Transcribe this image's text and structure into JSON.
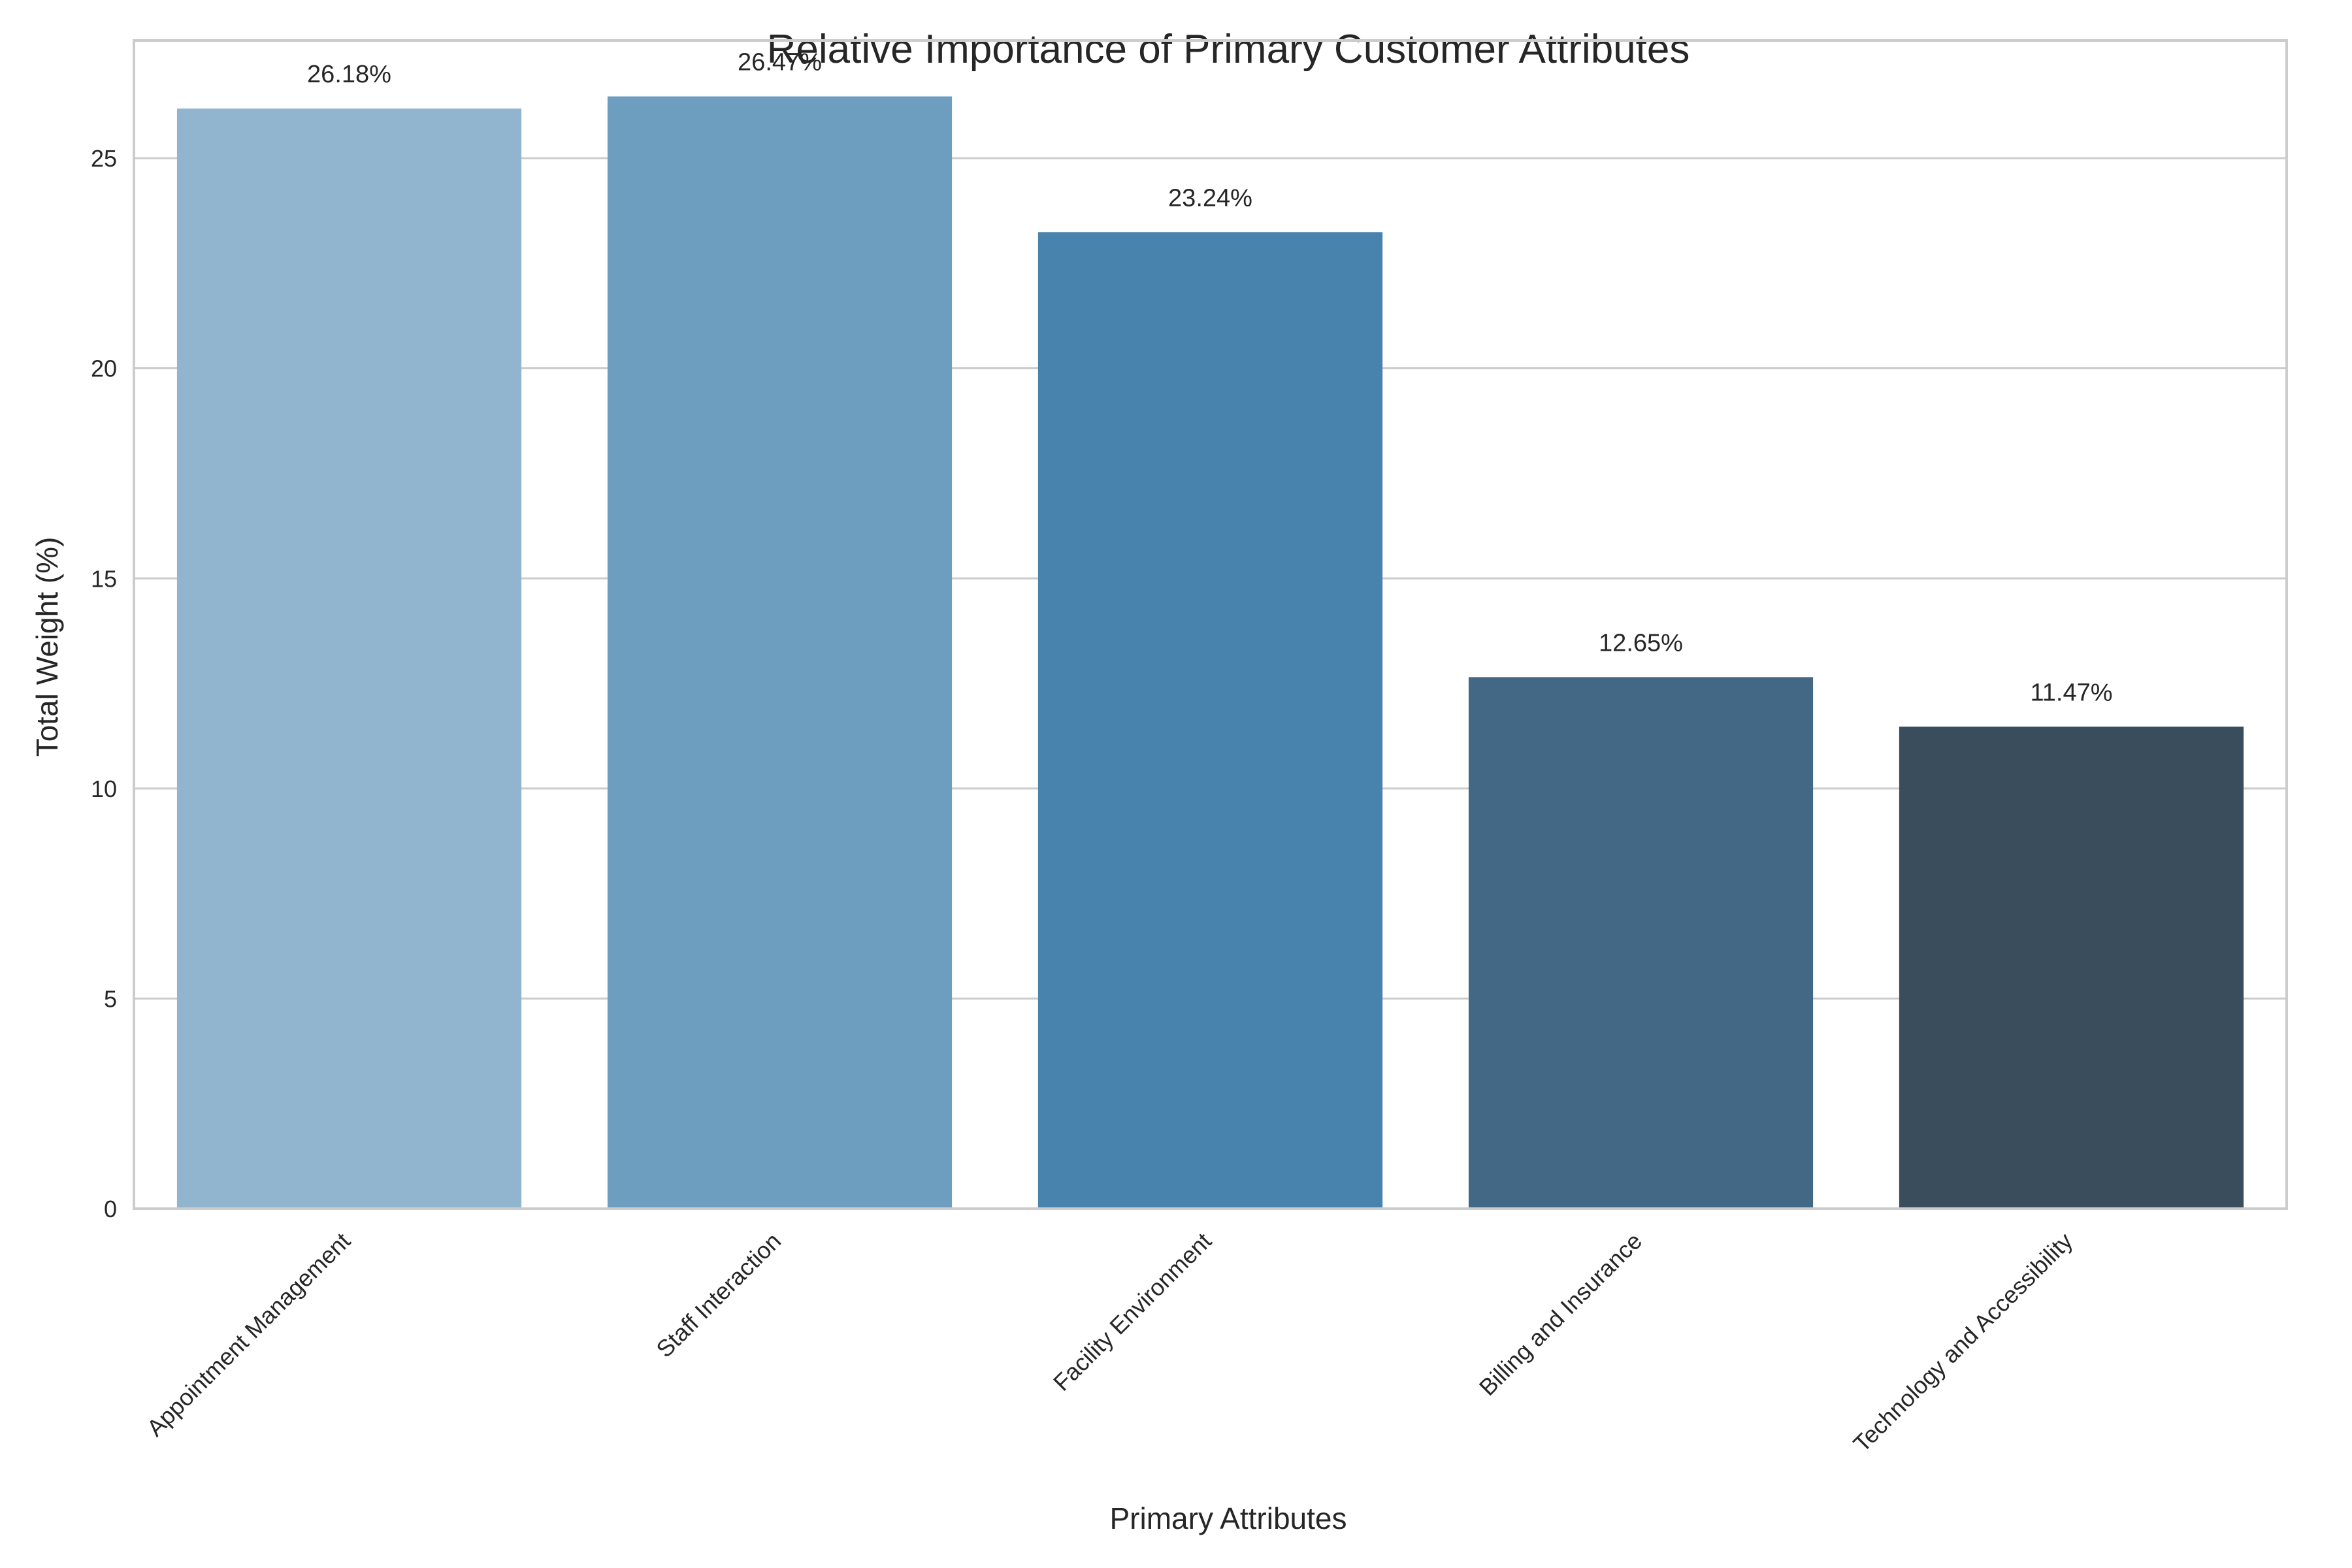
{
  "chart_data": {
    "type": "bar",
    "title": "Relative Importance of Primary Customer Attributes",
    "xlabel": "Primary Attributes",
    "ylabel": "Total Weight (%)",
    "categories": [
      "Appointment Management",
      "Staff Interaction",
      "Facility Environment",
      "Billing and Insurance",
      "Technology and Accessibility"
    ],
    "values": [
      26.18,
      26.47,
      23.24,
      12.65,
      11.47
    ],
    "data_labels": [
      "26.18%",
      "26.47%",
      "23.24%",
      "12.65%",
      "11.47%"
    ],
    "ylim": [
      0,
      27.8
    ],
    "yticks": [
      0,
      5,
      10,
      15,
      20,
      25
    ],
    "colors": [
      "#91b5cf",
      "#6d9dbf",
      "#4883ae",
      "#426885",
      "#3a4d5c"
    ],
    "grid": "horizontal",
    "legend": "none"
  }
}
